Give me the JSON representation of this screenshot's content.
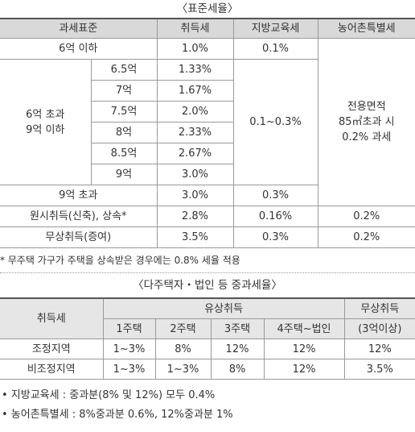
{
  "standard_rates": {
    "title": "〈표준세율〉",
    "header": [
      "과세표준",
      "취득세",
      "지방교육세",
      "농어촌특별세"
    ],
    "rows": [
      [
        "6억 이하",
        "1.0%",
        "0.1%",
        "전용면적\n85㎡초과 시\n0.2% 과세"
      ],
      [
        "6억 초과\n9억 이하",
        "6.5억",
        "1.33%",
        "0.1~0.3%"
      ],
      [
        "7억",
        "1.67%"
      ],
      [
        "7.5억",
        "2.0%"
      ],
      [
        "8억",
        "2.33%"
      ],
      [
        "8.5억",
        "2.67%"
      ],
      [
        "9억",
        "3.0%"
      ],
      [
        "9억 초과",
        "3.0%",
        "0.3%"
      ],
      [
        "원시취득(신축), 상속*",
        "2.8%",
        "0.16%",
        "0.2%"
      ],
      [
        "무상취득(증여)",
        "3.5%",
        "0.3%",
        "0.2%"
      ]
    ],
    "note": "* 무주택 가구가 주택을 상속받은 경우에는 0.8% 세율 적용"
  },
  "heavy_rates": {
    "title": "〈다주택자・법인 등 중과세율〉",
    "header": [
      "취득세",
      "유상취득",
      "무상취득",
      "1주택",
      "2주택",
      "3주택",
      "4주택~법인",
      "(3억이상)"
    ],
    "rows": [
      [
        "조정지역",
        "1~3%",
        "8%",
        "12%",
        "12%",
        "12%"
      ],
      [
        "비조정지역",
        "1~3%",
        "1~3%",
        "8%",
        "12%",
        "3.5%"
      ]
    ]
  },
  "notes": [
    "• 지방교육세 : 중과분(8% 및 12%) 모두 0.4%",
    "• 농어촌특별세 : 8%중과분 0.6%, 12%중과분 1%"
  ]
}
